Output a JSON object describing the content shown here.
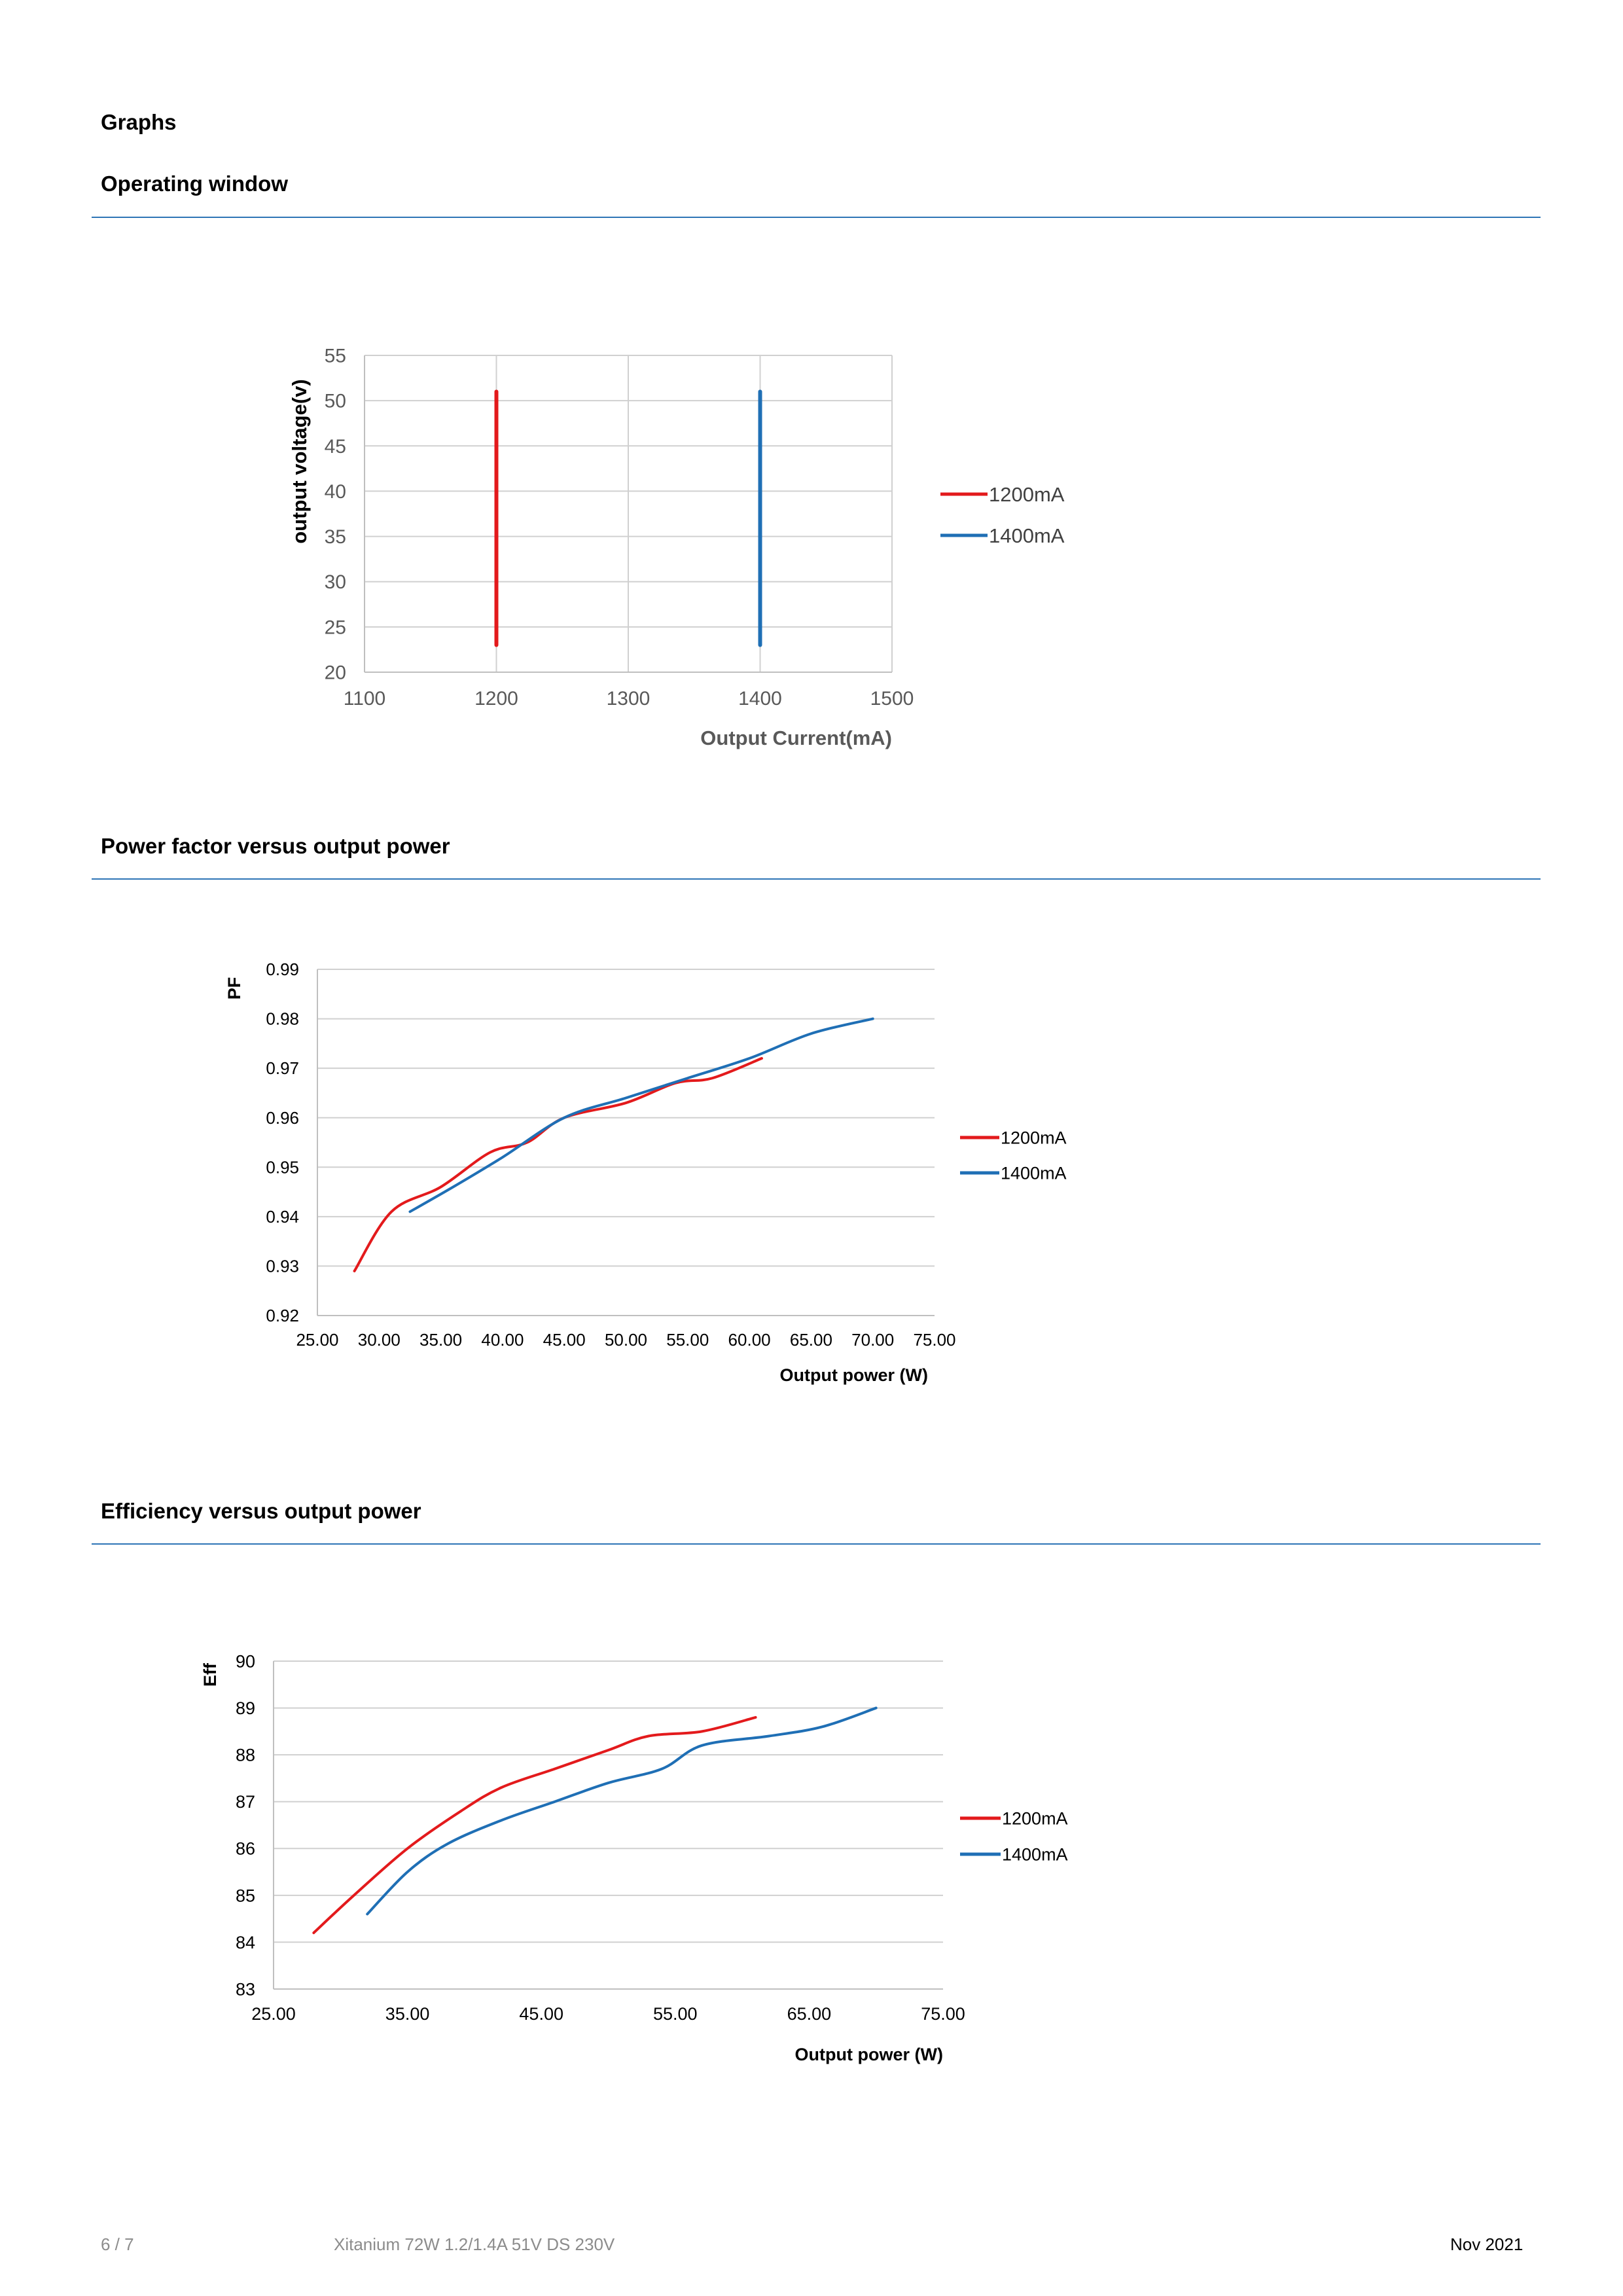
{
  "section_title": "Graphs",
  "headings": {
    "operating_window": "Operating window",
    "power_factor": "Power factor versus output power",
    "efficiency": "Efficiency versus output power"
  },
  "footer": {
    "page": "6 / 7",
    "doc": "Xitanium 72W 1.2/1.4A 51V DS 230V",
    "date": "Nov 2021"
  },
  "colors": {
    "red": "#e31a1c",
    "blue": "#1f6fb5",
    "grid": "#d0d0d0",
    "rule": "#2e75b6"
  },
  "chart_data": [
    {
      "id": "operating",
      "type": "line",
      "title": "",
      "xlabel": "Output Current(mA)",
      "ylabel": "output voltage(v)",
      "xlim": [
        1100,
        1500
      ],
      "ylim": [
        20,
        55
      ],
      "xticks": [
        "1100",
        "1200",
        "1300",
        "1400",
        "1500"
      ],
      "yticks": [
        "20",
        "25",
        "30",
        "35",
        "40",
        "45",
        "50",
        "55"
      ],
      "grid": "both",
      "legend": "right",
      "series": [
        {
          "name": "1200mA",
          "color": "#e31a1c",
          "x": [
            1200,
            1200
          ],
          "y": [
            23,
            51
          ]
        },
        {
          "name": "1400mA",
          "color": "#1f6fb5",
          "x": [
            1400,
            1400
          ],
          "y": [
            23,
            51
          ]
        }
      ]
    },
    {
      "id": "pf",
      "type": "line",
      "title": "",
      "xlabel": "Output power (W)",
      "ylabel": "PF",
      "xlim": [
        25,
        75
      ],
      "ylim": [
        0.92,
        0.99
      ],
      "xticks": [
        "25.00",
        "30.00",
        "35.00",
        "40.00",
        "45.00",
        "50.00",
        "55.00",
        "60.00",
        "65.00",
        "70.00",
        "75.00"
      ],
      "yticks": [
        "0.92",
        "0.93",
        "0.94",
        "0.95",
        "0.96",
        "0.97",
        "0.98",
        "0.99"
      ],
      "grid": "horizontal",
      "legend": "right",
      "series": [
        {
          "name": "1200mA",
          "color": "#e31a1c",
          "x": [
            28,
            31,
            35,
            39,
            42,
            45,
            50,
            54,
            57,
            61
          ],
          "y": [
            0.929,
            0.941,
            0.946,
            0.953,
            0.955,
            0.96,
            0.963,
            0.967,
            0.968,
            0.972
          ]
        },
        {
          "name": "1400mA",
          "color": "#1f6fb5",
          "x": [
            32.5,
            36,
            40,
            45,
            50,
            55,
            60,
            65,
            70
          ],
          "y": [
            0.941,
            0.946,
            0.952,
            0.96,
            0.964,
            0.968,
            0.972,
            0.977,
            0.98
          ]
        }
      ]
    },
    {
      "id": "eff",
      "type": "line",
      "title": "",
      "xlabel": "Output power (W)",
      "ylabel": "Eff",
      "xlim": [
        25,
        75
      ],
      "ylim": [
        83,
        90
      ],
      "xticks": [
        "25.00",
        "35.00",
        "45.00",
        "55.00",
        "65.00",
        "75.00"
      ],
      "yticks": [
        "83",
        "84",
        "85",
        "86",
        "87",
        "88",
        "89",
        "90"
      ],
      "grid": "horizontal",
      "legend": "right",
      "series": [
        {
          "name": "1200mA",
          "color": "#e31a1c",
          "x": [
            28,
            31,
            35,
            39,
            42,
            46,
            50,
            53,
            57,
            61
          ],
          "y": [
            84.2,
            85.0,
            86.0,
            86.8,
            87.3,
            87.7,
            88.1,
            88.4,
            88.5,
            88.8
          ]
        },
        {
          "name": "1400mA",
          "color": "#1f6fb5",
          "x": [
            32,
            35,
            38,
            42,
            46,
            50,
            54,
            57,
            62,
            66,
            70
          ],
          "y": [
            84.6,
            85.5,
            86.1,
            86.6,
            87.0,
            87.4,
            87.7,
            88.2,
            88.4,
            88.6,
            89.0
          ]
        }
      ]
    }
  ]
}
